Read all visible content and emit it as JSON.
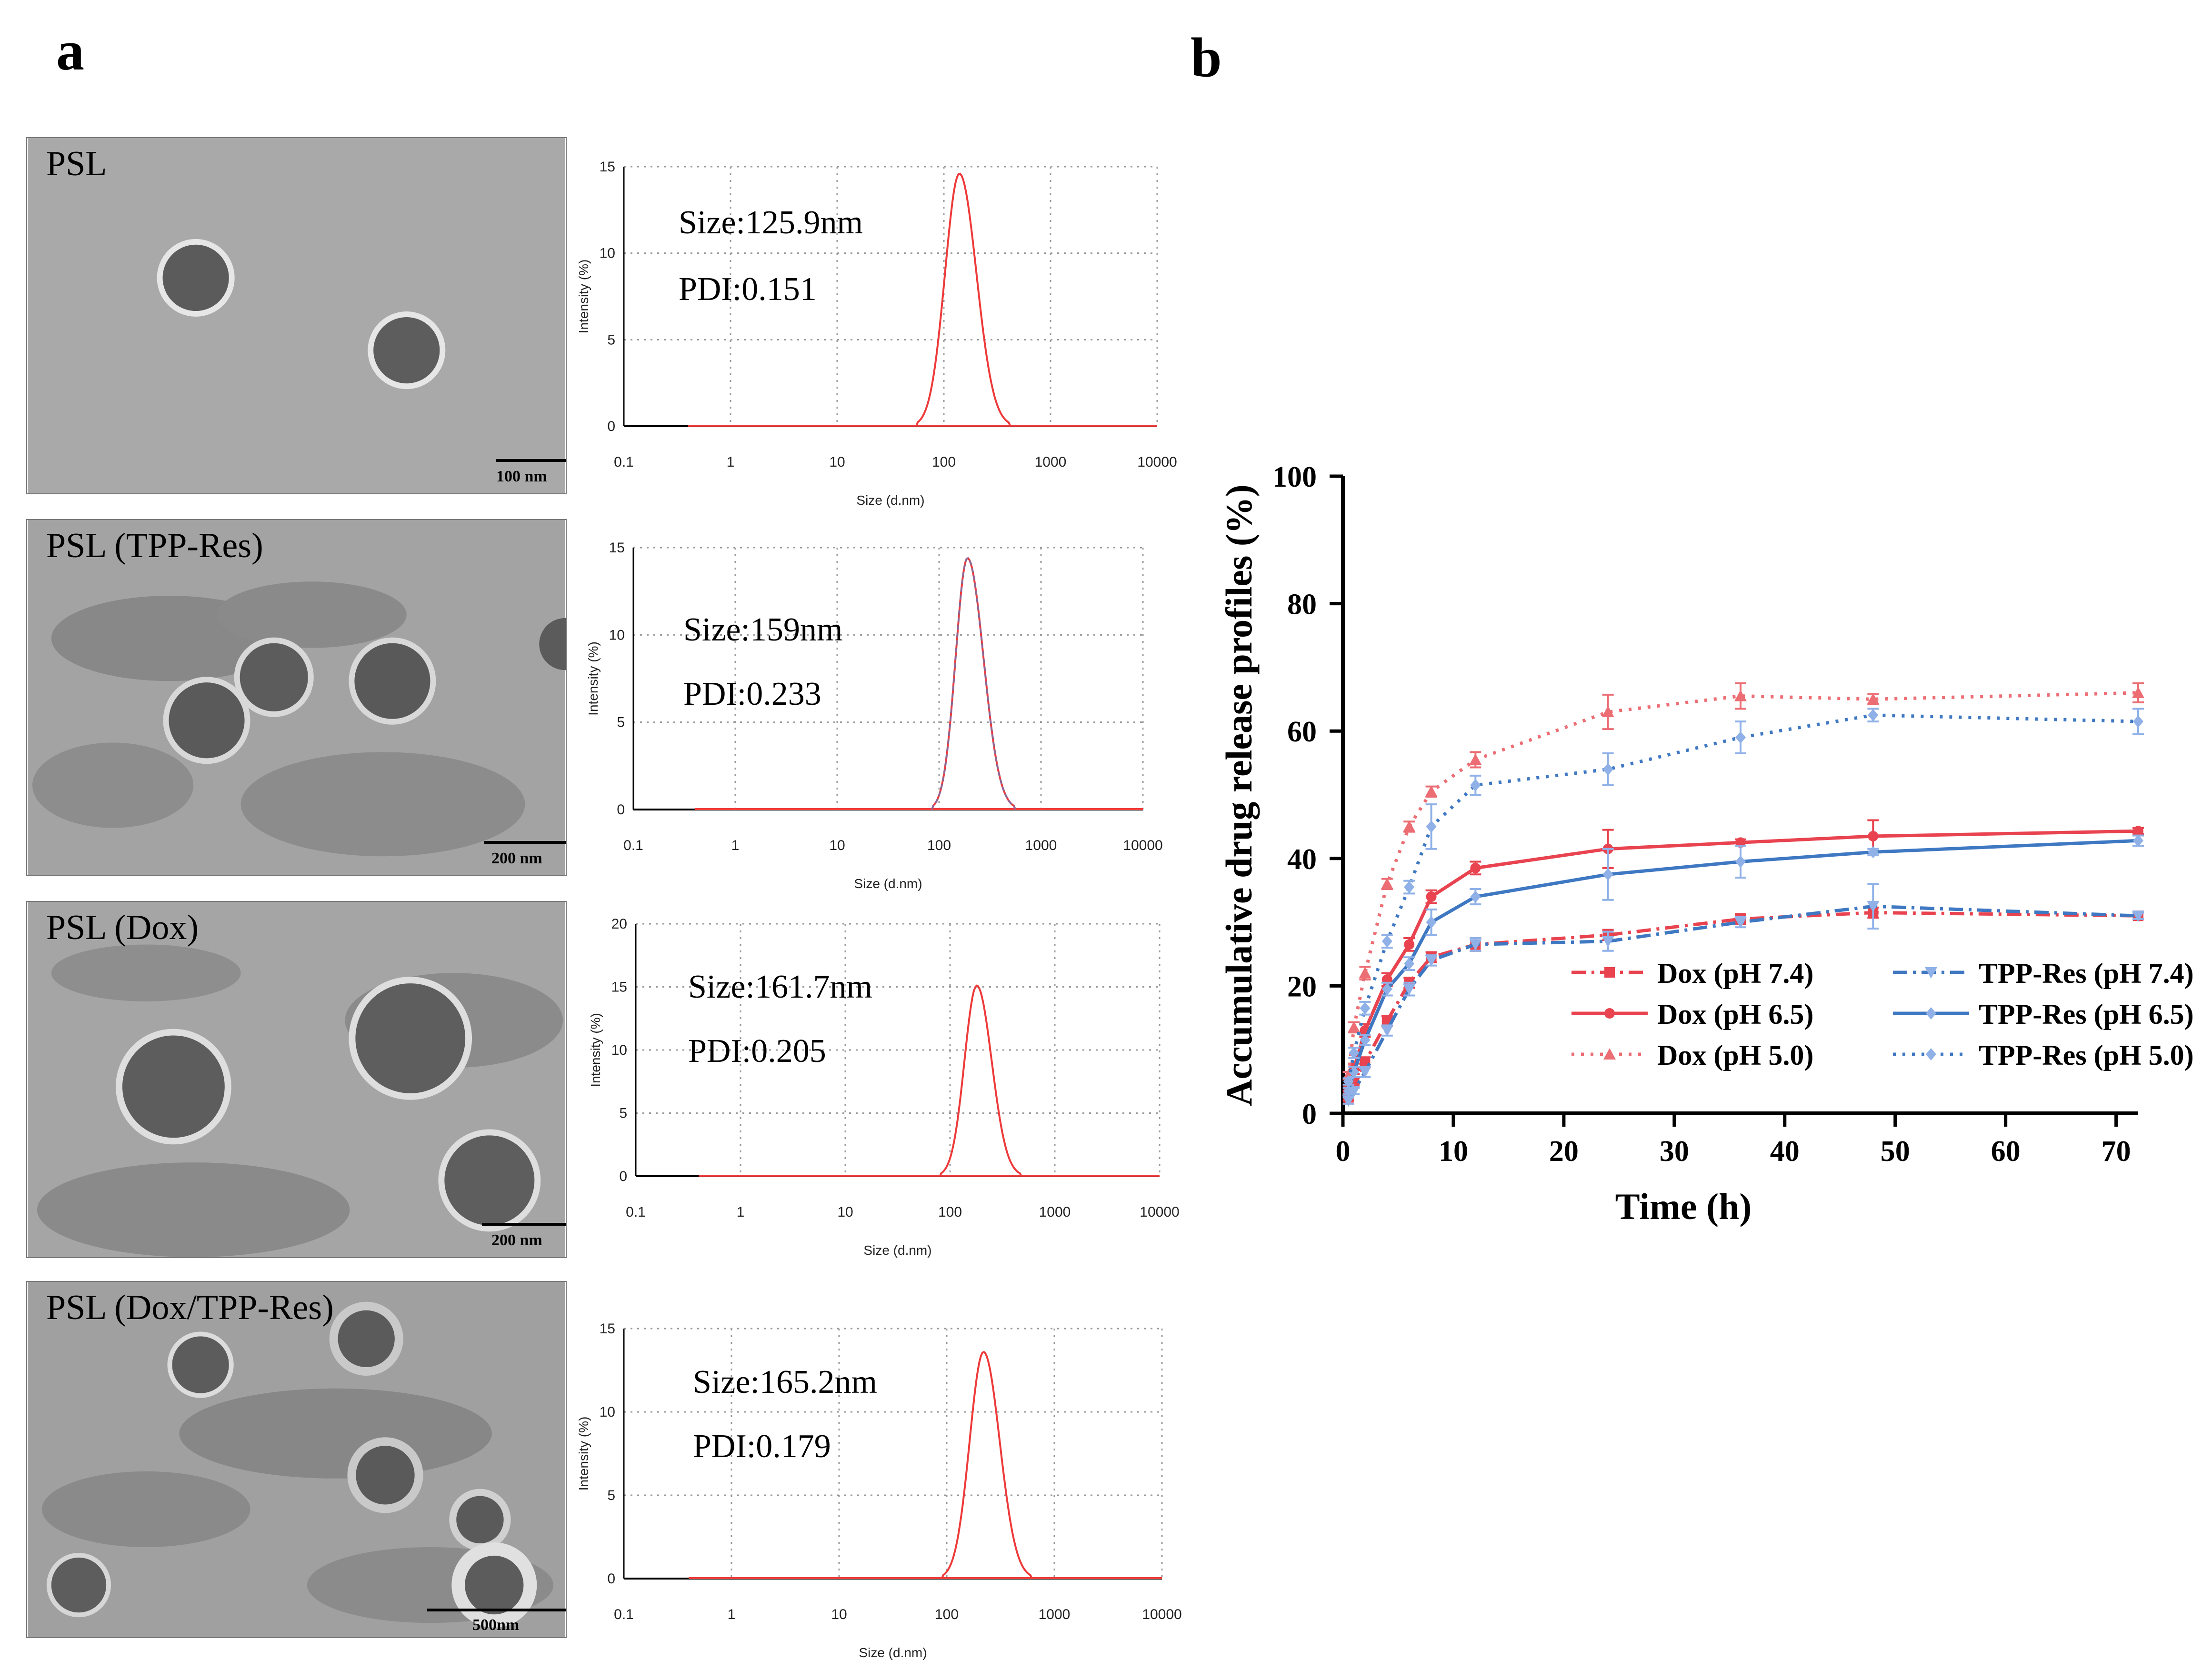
{
  "figure": {
    "panel_a_label": "a",
    "panel_b_label": "b"
  },
  "tem_panels": [
    {
      "label": "PSL",
      "scale_bar": "100 nm"
    },
    {
      "label": "PSL (TPP-Res)",
      "scale_bar": "200 nm"
    },
    {
      "label": "PSL (Dox)",
      "scale_bar": "200 nm"
    },
    {
      "label": "PSL (Dox/TPP-Res)",
      "scale_bar": "500nm"
    }
  ],
  "colors": {
    "dox": "#e8434f",
    "tpp": "#3f78c2",
    "tpp_light": "#8fb1e8",
    "dox_light": "#ec6d74",
    "dls_curve": "#ee3a3a",
    "dls_curve_overlay": "#7a70a8",
    "grid": "#9a9a9a"
  },
  "chart_data": [
    {
      "type": "line",
      "title": "",
      "x_scale": "log",
      "xlabel": "Size (d.nm)",
      "ylabel": "Intensity (%)",
      "xlim": [
        0.1,
        10000
      ],
      "ylim": [
        0,
        15
      ],
      "x_ticks": [
        "0.1",
        "1",
        "10",
        "100",
        "1000",
        "10000"
      ],
      "y_ticks": [
        "0",
        "5",
        "10",
        "15"
      ],
      "annotations": [
        "Size:125.9nm",
        "PDI:0.151"
      ],
      "series": [
        {
          "peak_size": 140,
          "peak_intensity": 14.6,
          "start_size": 55,
          "end_size": 420
        }
      ]
    },
    {
      "type": "line",
      "title": "",
      "x_scale": "log",
      "xlabel": "Size (d.nm)",
      "ylabel": "Intensity (%)",
      "xlim": [
        0.1,
        10000
      ],
      "ylim": [
        0,
        15
      ],
      "x_ticks": [
        "0.1",
        "1",
        "10",
        "100",
        "1000",
        "10000"
      ],
      "y_ticks": [
        "0",
        "5",
        "10",
        "15"
      ],
      "annotations": [
        "Size:159nm",
        "PDI:0.233"
      ],
      "series": [
        {
          "peak_size": 190,
          "peak_intensity": 14.4,
          "start_size": 85,
          "end_size": 560
        }
      ]
    },
    {
      "type": "line",
      "title": "",
      "x_scale": "log",
      "xlabel": "Size (d.nm)",
      "ylabel": "Intensity (%)",
      "xlim": [
        0.1,
        10000
      ],
      "ylim": [
        0,
        20
      ],
      "x_ticks": [
        "0.1",
        "1",
        "10",
        "100",
        "1000",
        "10000"
      ],
      "y_ticks": [
        "0",
        "5",
        "10",
        "15",
        "20"
      ],
      "annotations": [
        "Size:161.7nm",
        "PDI:0.205"
      ],
      "series": [
        {
          "peak_size": 180,
          "peak_intensity": 15.1,
          "start_size": 80,
          "end_size": 480
        }
      ]
    },
    {
      "type": "line",
      "title": "",
      "x_scale": "log",
      "xlabel": "Size (d.nm)",
      "ylabel": "Intensity (%)",
      "xlim": [
        0.1,
        10000
      ],
      "ylim": [
        0,
        15
      ],
      "x_ticks": [
        "0.1",
        "1",
        "10",
        "100",
        "1000",
        "10000"
      ],
      "y_ticks": [
        "0",
        "5",
        "10",
        "15"
      ],
      "annotations": [
        "Size:165.2nm",
        "PDI:0.179"
      ],
      "series": [
        {
          "peak_size": 220,
          "peak_intensity": 13.6,
          "start_size": 90,
          "end_size": 620
        }
      ]
    },
    {
      "type": "line",
      "title": "",
      "xlabel": "Time (h)",
      "ylabel": "Accumulative drug release profiles (%)",
      "xlim": [
        0,
        72
      ],
      "ylim": [
        0,
        100
      ],
      "x_ticks": [
        "0",
        "10",
        "20",
        "30",
        "40",
        "50",
        "60",
        "70"
      ],
      "y_ticks": [
        "0",
        "20",
        "40",
        "60",
        "80",
        "100"
      ],
      "legend_position": "lower-right",
      "x": [
        0.5,
        1,
        2,
        4,
        6,
        8,
        12,
        24,
        36,
        48,
        72
      ],
      "series": [
        {
          "name": "Dox (pH 7.4)",
          "values": [
            2.5,
            5,
            8,
            14.5,
            20.5,
            24.5,
            26.5,
            28,
            30.5,
            31.5,
            31
          ],
          "error": [
            0.5,
            0.5,
            0.8,
            0.8,
            0.8,
            0.8,
            1,
            0.8,
            0.8,
            0.8,
            0.5
          ]
        },
        {
          "name": "Dox (pH 6.5)",
          "values": [
            4,
            7,
            13,
            21,
            26.5,
            34,
            38.5,
            41.5,
            42.5,
            43.5,
            44.3
          ],
          "error": [
            0.5,
            0.8,
            1,
            1,
            1,
            1,
            1,
            3,
            0.5,
            2.5,
            0.5
          ]
        },
        {
          "name": "Dox (pH 5.0)",
          "values": [
            6,
            13.5,
            22,
            36,
            45,
            50.5,
            55.5,
            63,
            65.5,
            65,
            66
          ],
          "error": [
            0.5,
            0.8,
            1,
            0.8,
            0.8,
            0.8,
            1.2,
            2.7,
            2,
            0.8,
            1.5
          ]
        },
        {
          "name": "TPP-Res (pH 7.4)",
          "values": [
            2,
            3.5,
            6.5,
            13,
            19.5,
            24,
            26.5,
            27,
            30,
            32.5,
            31
          ],
          "error": [
            0.5,
            0.5,
            0.8,
            0.8,
            1,
            0.8,
            1,
            1.5,
            0.8,
            3.5,
            0.5
          ]
        },
        {
          "name": "TPP-Res (pH 6.5)",
          "values": [
            3.5,
            6.5,
            11.5,
            19.5,
            23.5,
            30,
            34,
            37.5,
            39.5,
            41,
            42.8
          ],
          "error": [
            0.5,
            0.8,
            0.8,
            1,
            1,
            2,
            1.2,
            4,
            2.5,
            0.5,
            0.8
          ]
        },
        {
          "name": "TPP-Res (pH 5.0)",
          "values": [
            5,
            9.5,
            16.5,
            27,
            35.5,
            45,
            51.5,
            54,
            59,
            62.5,
            61.5
          ],
          "error": [
            0.5,
            0.8,
            1,
            1,
            1,
            3.5,
            1.5,
            2.5,
            2.5,
            1,
            2
          ]
        }
      ]
    }
  ]
}
